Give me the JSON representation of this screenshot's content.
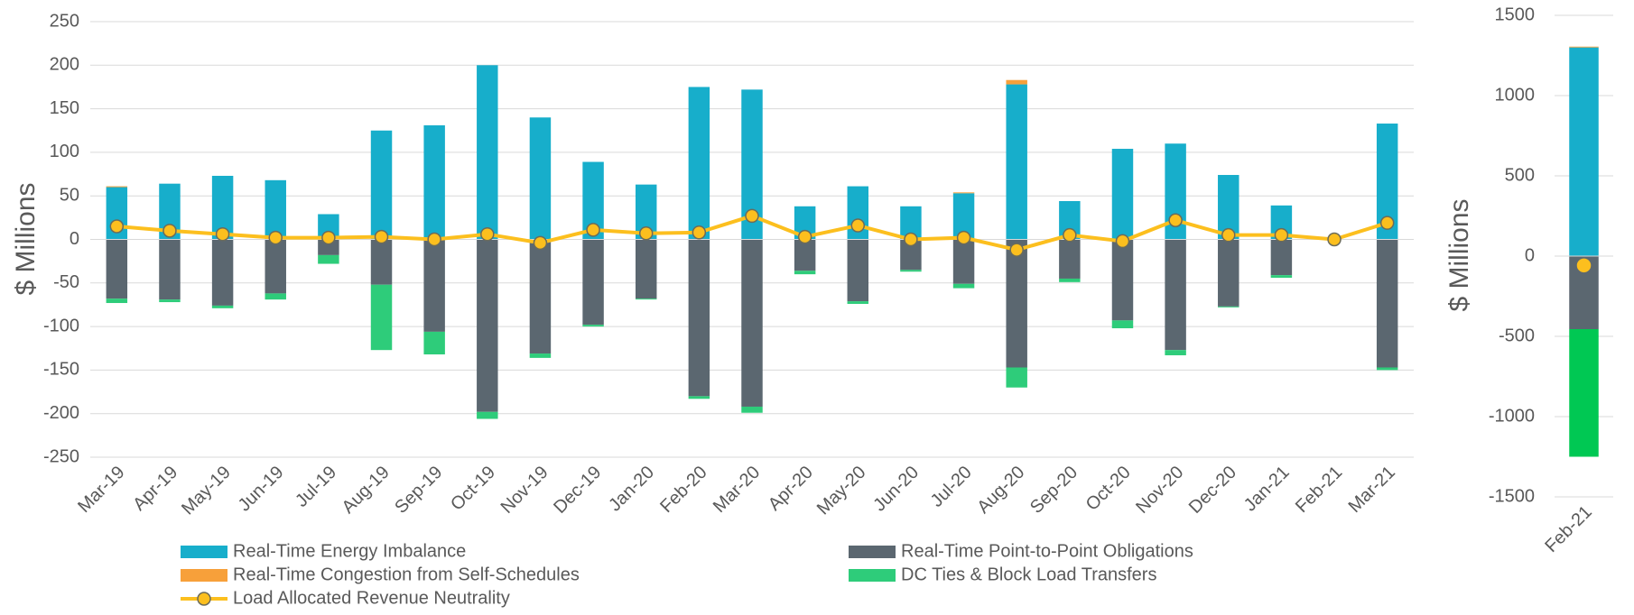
{
  "chart_data": [
    {
      "type": "stacked_bar_line",
      "y_label": "$ Millions",
      "categories": [
        "Mar-19",
        "Apr-19",
        "May-19",
        "Jun-19",
        "Jul-19",
        "Aug-19",
        "Sep-19",
        "Oct-19",
        "Nov-19",
        "Dec-19",
        "Jan-20",
        "Feb-20",
        "Mar-20",
        "Apr-20",
        "May-20",
        "Jun-20",
        "Jul-20",
        "Aug-20",
        "Sep-20",
        "Oct-20",
        "Nov-20",
        "Dec-20",
        "Jan-21",
        "Feb-21",
        "Mar-21"
      ],
      "ylim": [
        -250,
        250
      ],
      "yticks": [
        250,
        200,
        150,
        100,
        50,
        0,
        -50,
        -100,
        -150,
        -200,
        -250
      ],
      "grid": true,
      "series": [
        {
          "name": "Real-Time Energy Imbalance",
          "color": "#17aecb",
          "values": [
            60,
            64,
            73,
            68,
            29,
            125,
            131,
            200,
            140,
            89,
            63,
            175,
            172,
            38,
            61,
            38,
            53,
            178,
            44,
            104,
            110,
            74,
            39,
            null,
            133
          ]
        },
        {
          "name": "Real-Time Point-to-Point Obligations",
          "color": "#5b6770",
          "values": [
            -68,
            -69,
            -76,
            -62,
            -18,
            -52,
            -106,
            -198,
            -131,
            -98,
            -68,
            -180,
            -192,
            -36,
            -71,
            -35,
            -51,
            -147,
            -45,
            -93,
            -127,
            -77,
            -41,
            null,
            -147
          ]
        },
        {
          "name": "Real-Time Congestion from Self-Schedules",
          "color": "#f7a03a",
          "values": [
            1,
            0,
            0,
            0,
            0,
            0,
            0,
            0,
            0,
            0,
            0,
            0,
            0,
            0,
            0,
            0,
            1,
            5,
            0,
            0,
            0,
            0,
            0,
            null,
            0
          ]
        },
        {
          "name": "DC Ties & Block Load Transfers",
          "color": "#2ecc7a",
          "values": [
            -5,
            -3,
            -3,
            -7,
            -10,
            -75,
            -26,
            -8,
            -5,
            -2,
            -1,
            -3,
            -7,
            -4,
            -3,
            -2,
            -5,
            -23,
            -4,
            -9,
            -6,
            -1,
            -3,
            null,
            -3
          ]
        },
        {
          "name": "Load Allocated Revenue Neutrality",
          "type": "line",
          "color": "#fcbf1e",
          "values": [
            15,
            10,
            6,
            2,
            2,
            3,
            0,
            6,
            -4,
            11,
            7,
            8,
            27,
            3,
            16,
            0,
            2,
            -12,
            5,
            -2,
            22,
            5,
            5,
            0,
            19
          ]
        }
      ]
    },
    {
      "type": "stacked_bar_line",
      "y_label": "$ Millions",
      "categories": [
        "Feb-21"
      ],
      "ylim": [
        -1500,
        1500
      ],
      "yticks": [
        1500,
        1000,
        500,
        0,
        -500,
        -1000,
        -1500
      ],
      "grid": true,
      "series": [
        {
          "color": "#17aecb",
          "values": [
            1300
          ]
        },
        {
          "color": "#5b6770",
          "values": [
            -455
          ]
        },
        {
          "color": "#f7a03a",
          "values": [
            5
          ]
        },
        {
          "color": "#00c853",
          "values": [
            -795
          ]
        },
        {
          "type": "line",
          "color": "#fcbf1e",
          "values": [
            -58
          ]
        }
      ]
    }
  ]
}
